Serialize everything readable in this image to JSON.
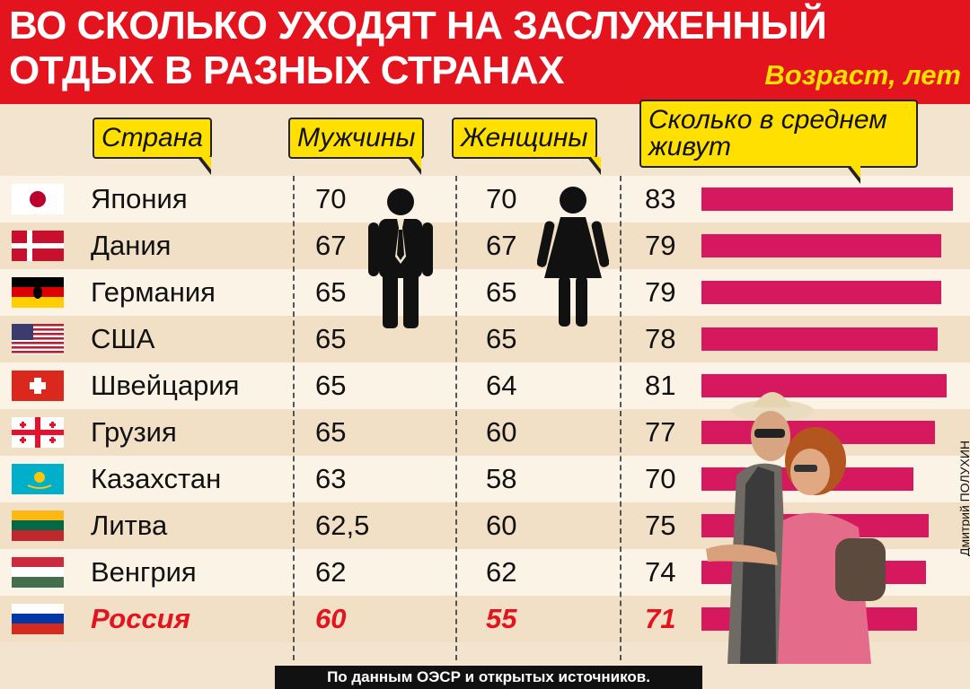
{
  "title_line1": "ВО СКОЛЬКО УХОДЯТ НА ЗАСЛУЖЕННЫЙ",
  "title_line2": "ОТДЫХ В РАЗНЫХ СТРАНАХ",
  "unit_label": "Возраст, лет",
  "headers": {
    "country": "Страна",
    "men": "Мужчины",
    "women": "Женщины",
    "life_line1": "Сколько в среднем",
    "life_line2": "живут"
  },
  "rows": [
    {
      "country": "Япония",
      "men": "70",
      "women": "70",
      "life": "83",
      "flag": "japan-flag"
    },
    {
      "country": "Дания",
      "men": "67",
      "women": "67",
      "life": "79",
      "flag": "denmark-flag"
    },
    {
      "country": "Германия",
      "men": "65",
      "women": "65",
      "life": "79",
      "flag": "germany-flag"
    },
    {
      "country": "США",
      "men": "65",
      "women": "65",
      "life": "78",
      "flag": "usa-flag"
    },
    {
      "country": "Швейцария",
      "men": "65",
      "women": "64",
      "life": "81",
      "flag": "switzerland-flag"
    },
    {
      "country": "Грузия",
      "men": "65",
      "women": "60",
      "life": "77",
      "flag": "georgia-flag"
    },
    {
      "country": "Казахстан",
      "men": "63",
      "women": "58",
      "life": "70",
      "flag": "kazakhstan-flag"
    },
    {
      "country": "Литва",
      "men": "62,5",
      "women": "60",
      "life": "75",
      "flag": "lithuania-flag"
    },
    {
      "country": "Венгрия",
      "men": "62",
      "women": "62",
      "life": "74",
      "flag": "hungary-flag"
    },
    {
      "country": "Россия",
      "men": "60",
      "women": "55",
      "life": "71",
      "flag": "russia-flag"
    }
  ],
  "footer": "По данным ОЭСР и открытых источников.",
  "credit": "Дмитрий ПОЛУХИН",
  "colors": {
    "header_red": "#e3141d",
    "bar": "#d6185e",
    "label_yellow": "#ffe000",
    "highlight": "#e3141d"
  },
  "chart_data": {
    "type": "table",
    "title": "ВО СКОЛЬКО УХОДЯТ НА ЗАСЛУЖЕННЫЙ ОТДЫХ В РАЗНЫХ СТРАНАХ",
    "unit": "Возраст, лет",
    "columns": [
      "Страна",
      "Мужчины",
      "Женщины",
      "Сколько в среднем живут"
    ],
    "categories": [
      "Япония",
      "Дания",
      "Германия",
      "США",
      "Швейцария",
      "Грузия",
      "Казахстан",
      "Литва",
      "Венгрия",
      "Россия"
    ],
    "series": [
      {
        "name": "Мужчины",
        "values": [
          70,
          67,
          65,
          65,
          65,
          65,
          63,
          62.5,
          62,
          60
        ]
      },
      {
        "name": "Женщины",
        "values": [
          70,
          67,
          65,
          65,
          64,
          60,
          58,
          60,
          62,
          55
        ]
      },
      {
        "name": "Сколько в среднем живут",
        "values": [
          83,
          79,
          79,
          78,
          81,
          77,
          70,
          75,
          74,
          71
        ]
      }
    ],
    "bar_series": "Сколько в среднем живут",
    "highlighted_category": "Россия"
  }
}
